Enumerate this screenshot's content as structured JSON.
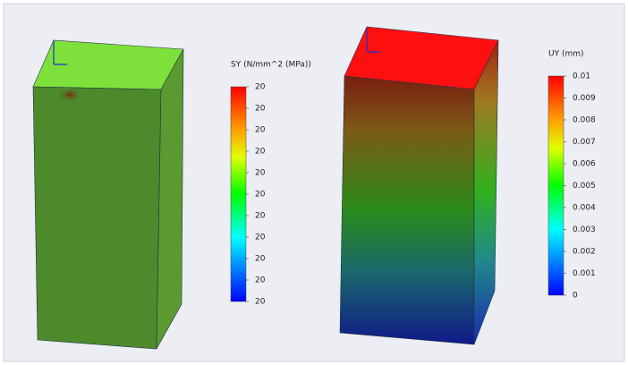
{
  "plots": [
    {
      "legend_title": "SY (N/mm^2 (MPa))",
      "legend_labels": [
        "20",
        "20",
        "20",
        "20",
        "20",
        "20",
        "20",
        "20",
        "20",
        "20",
        "20"
      ]
    },
    {
      "legend_title": "UY (mm)",
      "legend_labels": [
        "0.01",
        "0.009",
        "0.008",
        "0.007",
        "0.006",
        "0.005",
        "0.004",
        "0.003",
        "0.002",
        "0.001",
        "0"
      ]
    }
  ]
}
